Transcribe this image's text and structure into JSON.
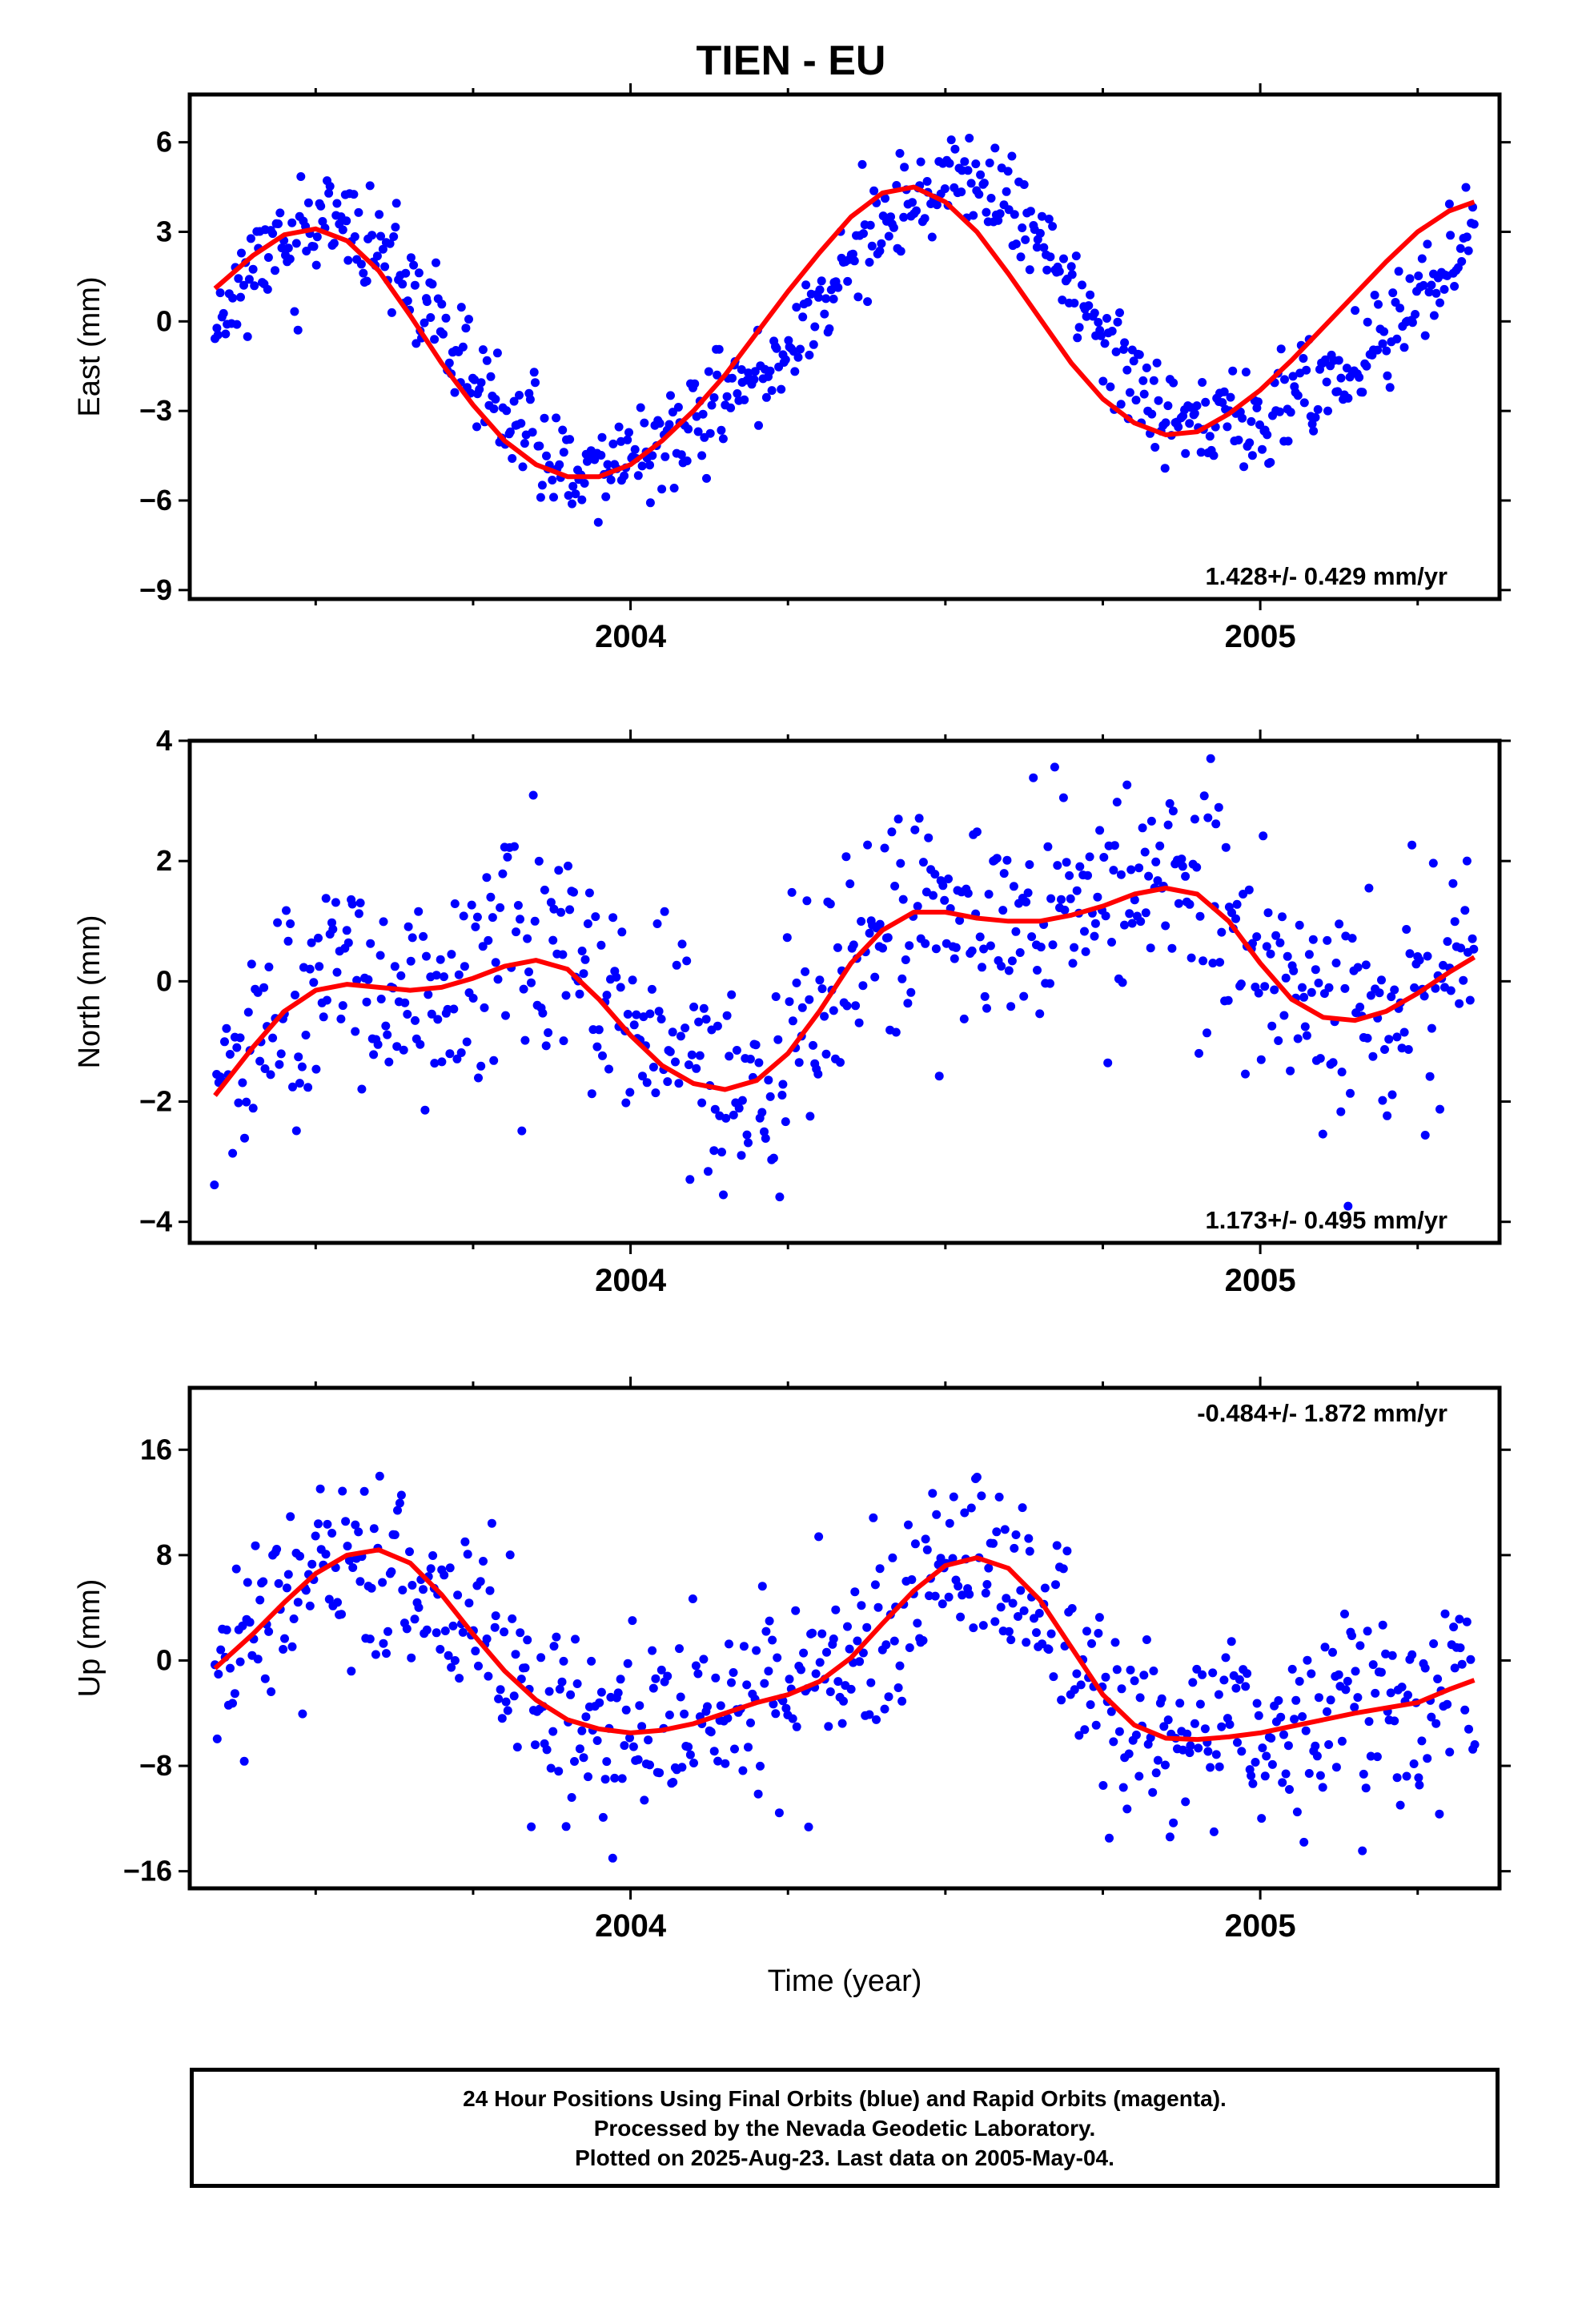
{
  "title": "TIEN - EU",
  "colors": {
    "points": "#0000ff",
    "fit": "#ff0000",
    "frame": "#000000"
  },
  "chart_data": [
    {
      "type": "scatter",
      "title": "TIEN - EU",
      "xlabel": "",
      "ylabel": "East (mm)",
      "xlim": [
        2003.3,
        2005.38
      ],
      "ylim": [
        -9.3,
        7.6
      ],
      "yticks": [
        6,
        3,
        0,
        -3,
        -6,
        -9
      ],
      "ytick_labels": [
        "6",
        "3",
        "0",
        "−3",
        "−6",
        "−9"
      ],
      "xtick_labels": [
        {
          "x": 2004,
          "label": "2004"
        },
        {
          "x": 2005,
          "label": "2005"
        }
      ],
      "rate_label": "1.428+/- 0.429 mm/yr",
      "rate_position": "bottom-right",
      "grid": false,
      "fit_x": [
        2003.34,
        2003.4,
        2003.45,
        2003.5,
        2003.55,
        2003.6,
        2003.65,
        2003.7,
        2003.75,
        2003.8,
        2003.85,
        2003.9,
        2003.95,
        2004.0,
        2004.05,
        2004.1,
        2004.15,
        2004.2,
        2004.25,
        2004.3,
        2004.35,
        2004.4,
        2004.45,
        2004.5,
        2004.55,
        2004.6,
        2004.65,
        2004.7,
        2004.75,
        2004.8,
        2004.85,
        2004.9,
        2004.95,
        2005.0,
        2005.05,
        2005.1,
        2005.15,
        2005.2,
        2005.25,
        2005.3,
        2005.34
      ],
      "fit_y": [
        1.1,
        2.2,
        2.9,
        3.1,
        2.7,
        1.7,
        0.2,
        -1.4,
        -2.8,
        -4.0,
        -4.8,
        -5.2,
        -5.2,
        -4.8,
        -4.0,
        -3.0,
        -1.8,
        -0.4,
        1.0,
        2.3,
        3.5,
        4.3,
        4.5,
        4.0,
        3.0,
        1.6,
        0.1,
        -1.4,
        -2.6,
        -3.4,
        -3.8,
        -3.7,
        -3.1,
        -2.3,
        -1.3,
        -0.2,
        0.9,
        2.0,
        3.0,
        3.7,
        4.0
      ],
      "points": {
        "x_start": 2003.34,
        "x_end": 2005.34,
        "count": 700,
        "model": "harmonic",
        "offset": -0.35,
        "trend": 1.428,
        "t0": 2004.34,
        "components": [
          {
            "period": 1.0,
            "amp": 4.2,
            "phase": 2004.49
          },
          {
            "period": 0.5,
            "amp": 0.6,
            "phase": 2004.05
          }
        ],
        "noise": 0.85,
        "seed": 11
      }
    },
    {
      "type": "scatter",
      "xlabel": "",
      "ylabel": "North (mm)",
      "xlim": [
        2003.3,
        2005.38
      ],
      "ylim": [
        -4.35,
        4.0
      ],
      "yticks": [
        4,
        2,
        0,
        -2,
        -4
      ],
      "ytick_labels": [
        "4",
        "2",
        "0",
        "−2",
        "−4"
      ],
      "xtick_labels": [
        {
          "x": 2004,
          "label": "2004"
        },
        {
          "x": 2005,
          "label": "2005"
        }
      ],
      "rate_label": "1.173+/- 0.495 mm/yr",
      "rate_position": "bottom-right",
      "grid": false,
      "fit_x": [
        2003.34,
        2003.4,
        2003.45,
        2003.5,
        2003.55,
        2003.6,
        2003.65,
        2003.7,
        2003.75,
        2003.8,
        2003.85,
        2003.9,
        2003.95,
        2004.0,
        2004.05,
        2004.1,
        2004.15,
        2004.2,
        2004.25,
        2004.3,
        2004.35,
        2004.4,
        2004.45,
        2004.5,
        2004.55,
        2004.6,
        2004.65,
        2004.7,
        2004.75,
        2004.8,
        2004.85,
        2004.9,
        2004.95,
        2005.0,
        2005.05,
        2005.1,
        2005.15,
        2005.2,
        2005.25,
        2005.3,
        2005.34
      ],
      "fit_y": [
        -1.9,
        -1.1,
        -0.5,
        -0.15,
        -0.05,
        -0.1,
        -0.15,
        -0.1,
        0.05,
        0.25,
        0.35,
        0.2,
        -0.3,
        -0.9,
        -1.4,
        -1.7,
        -1.8,
        -1.65,
        -1.2,
        -0.5,
        0.3,
        0.85,
        1.15,
        1.15,
        1.05,
        1.0,
        1.0,
        1.1,
        1.25,
        1.45,
        1.55,
        1.45,
        1.0,
        0.3,
        -0.3,
        -0.6,
        -0.65,
        -0.5,
        -0.2,
        0.15,
        0.4
      ],
      "points": {
        "x_start": 2003.34,
        "x_end": 2005.34,
        "count": 650,
        "model": "curve",
        "noise": 0.95,
        "seed": 23
      }
    },
    {
      "type": "scatter",
      "xlabel": "Time (year)",
      "ylabel": "Up (mm)",
      "xlim": [
        2003.3,
        2005.38
      ],
      "ylim": [
        -17.3,
        20.7
      ],
      "yticks": [
        16,
        8,
        0,
        -8,
        -16
      ],
      "ytick_labels": [
        "16",
        "8",
        "0",
        "−8",
        "−16"
      ],
      "xtick_labels": [
        {
          "x": 2004,
          "label": "2004"
        },
        {
          "x": 2005,
          "label": "2005"
        }
      ],
      "rate_label": "-0.484+/- 1.872 mm/yr",
      "rate_position": "top-right",
      "grid": false,
      "fit_x": [
        2003.34,
        2003.4,
        2003.45,
        2003.5,
        2003.55,
        2003.6,
        2003.65,
        2003.7,
        2003.75,
        2003.8,
        2003.85,
        2003.9,
        2003.95,
        2004.0,
        2004.05,
        2004.1,
        2004.15,
        2004.2,
        2004.25,
        2004.3,
        2004.35,
        2004.4,
        2004.45,
        2004.5,
        2004.55,
        2004.6,
        2004.65,
        2004.7,
        2004.75,
        2004.8,
        2004.85,
        2004.9,
        2004.95,
        2005.0,
        2005.05,
        2005.1,
        2005.15,
        2005.2,
        2005.25,
        2005.3,
        2005.34
      ],
      "fit_y": [
        -0.6,
        2.0,
        4.4,
        6.6,
        8.0,
        8.4,
        7.4,
        5.0,
        2.0,
        -0.8,
        -3.0,
        -4.5,
        -5.2,
        -5.5,
        -5.3,
        -4.8,
        -4.0,
        -3.2,
        -2.6,
        -1.6,
        0.2,
        2.8,
        5.3,
        7.2,
        7.8,
        7.0,
        4.6,
        1.0,
        -2.6,
        -4.9,
        -5.9,
        -6.0,
        -5.8,
        -5.5,
        -5.0,
        -4.5,
        -4.0,
        -3.6,
        -3.2,
        -2.2,
        -1.5
      ],
      "points": {
        "x_start": 2003.34,
        "x_end": 2005.34,
        "count": 650,
        "model": "curve",
        "noise": 3.6,
        "seed": 37
      }
    }
  ],
  "footer": {
    "line1": "24 Hour Positions Using Final Orbits (blue) and Rapid Orbits (magenta).",
    "line2": "Processed by the Nevada Geodetic Laboratory.",
    "line3": "Plotted on 2025-Aug-23. Last data on 2005-May-04."
  }
}
